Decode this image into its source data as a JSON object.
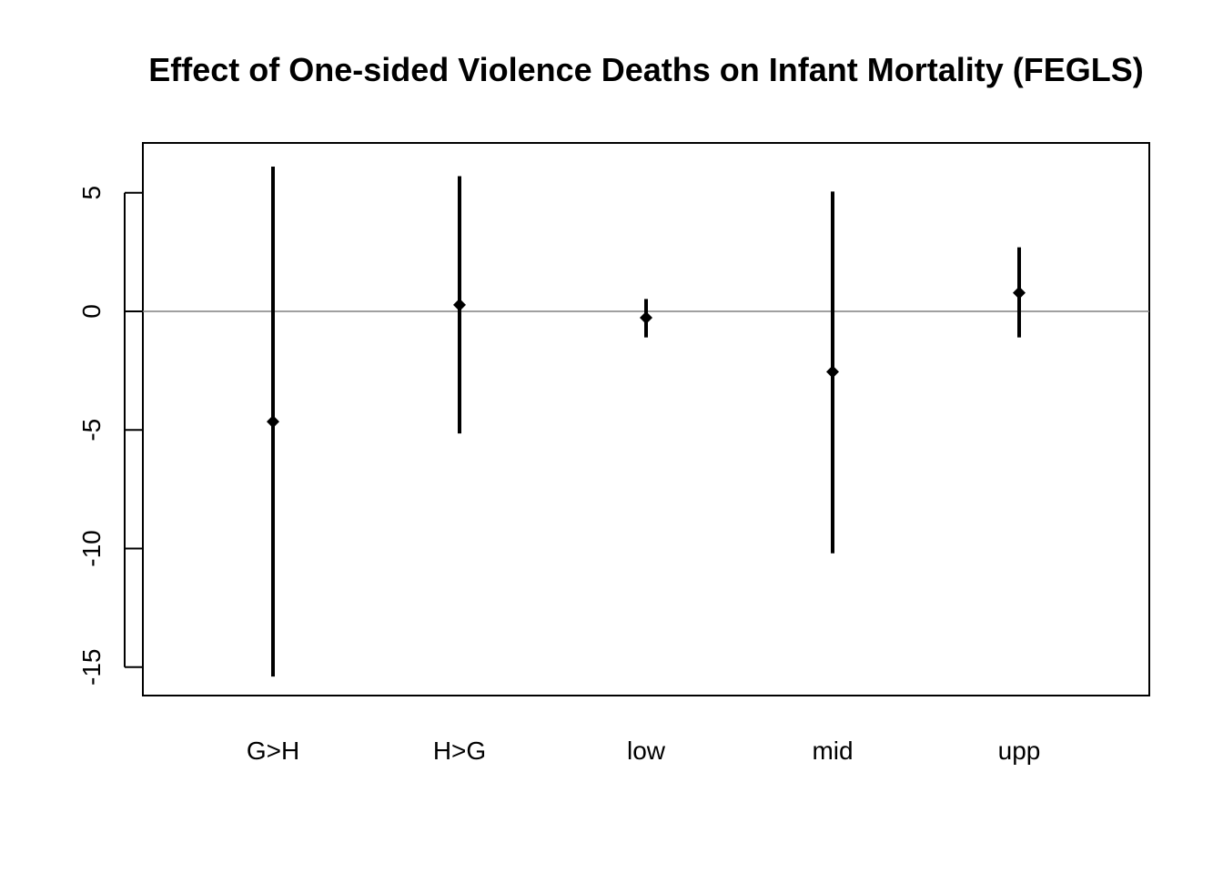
{
  "chart_data": {
    "type": "errorbar",
    "title": "Effect of One-sided Violence Deaths on Infant Mortality (FEGLS)",
    "xlabel": "",
    "ylabel": "",
    "categories": [
      "G>H",
      "H>G",
      "low",
      "mid",
      "upp"
    ],
    "estimates": [
      -4.65,
      0.27,
      -0.27,
      -2.55,
      0.78
    ],
    "lower": [
      -15.4,
      -5.15,
      -1.1,
      -10.2,
      -1.1
    ],
    "upper": [
      6.1,
      5.7,
      0.52,
      5.05,
      2.7
    ],
    "ylim": [
      -16.2,
      7.1
    ],
    "yticks": [
      5,
      0,
      -5,
      -10,
      -15
    ],
    "ytick_labels": [
      "5",
      "0",
      "-5",
      "-10",
      "-15"
    ],
    "reference_line": 0,
    "grid": false,
    "colors": {
      "marks": "#000000",
      "reference_line": "#808080"
    }
  }
}
